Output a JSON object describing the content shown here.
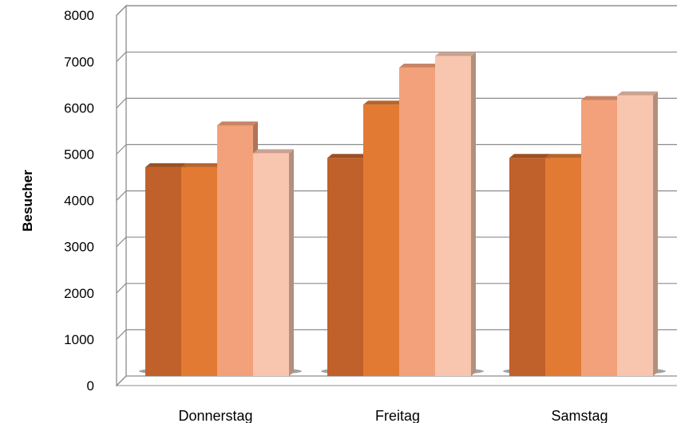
{
  "chart_data": {
    "type": "bar",
    "style": "3d-clustered-column",
    "categories": [
      "Donnerstag",
      "Freitag",
      "Samstag"
    ],
    "series": [
      {
        "values": [
          4650,
          4850,
          4850
        ],
        "color": "#C0602A"
      },
      {
        "values": [
          4650,
          6000,
          4850
        ],
        "color": "#E27A33"
      },
      {
        "values": [
          5550,
          6800,
          6100
        ],
        "color": "#F3A17A"
      },
      {
        "values": [
          4950,
          7050,
          6200
        ],
        "color": "#F8C6AF"
      }
    ],
    "xlabel": "",
    "ylabel": "Besucher",
    "ylim": [
      0,
      8000
    ],
    "yticks": [
      0,
      1000,
      2000,
      3000,
      4000,
      5000,
      6000,
      7000,
      8000
    ],
    "grid": true,
    "legend": "none"
  }
}
